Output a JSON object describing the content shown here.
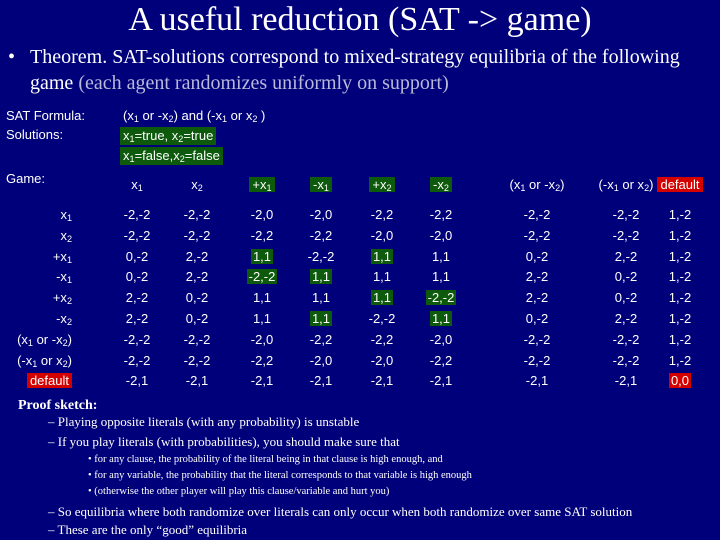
{
  "title": "A useful reduction (SAT -> game)",
  "theorem": {
    "bullet": "•",
    "text": "Theorem.  SAT-solutions correspond to mixed-strategy equilibria of the following game ",
    "note": "(each agent randomizes uniformly on support)"
  },
  "labels": {
    "sat_formula": "SAT Formula:",
    "solutions": "Solutions:",
    "game": "Game:"
  },
  "formula": {
    "prefix": "(x",
    "sub1": "1",
    "mid1": " or -x",
    "sub2": "2",
    "mid2": ") and (-x",
    "sub3": "1",
    "mid3": " or x",
    "sub4": "2",
    "suffix": " )"
  },
  "solutions": [
    {
      "a": "x",
      "as": "1",
      "b": "=true, x",
      "bs": "2",
      "c": "=true"
    },
    {
      "a": "x",
      "as": "1",
      "b": "=false,x",
      "bs": "2",
      "c": "=false"
    }
  ],
  "columns": [
    {
      "label": "x",
      "sub": "1",
      "style": ""
    },
    {
      "label": "x",
      "sub": "2",
      "style": ""
    },
    {
      "label": "+x",
      "sub": "1",
      "style": "hl"
    },
    {
      "label": "-x",
      "sub": "1",
      "style": "hl"
    },
    {
      "label": "+x",
      "sub": "2",
      "style": "hl"
    },
    {
      "label": "-x",
      "sub": "2",
      "style": "hl"
    },
    {
      "label": "(x",
      "sub": "1",
      "after": " or -x",
      "sub2": "2",
      "tail": ")",
      "style": ""
    },
    {
      "label": "(-x",
      "sub": "1",
      "after": " or x",
      "sub2": "2",
      "tail": ")",
      "style": ""
    },
    {
      "label": "default",
      "sub": "",
      "style": "red"
    }
  ],
  "rows": [
    {
      "label": "x",
      "sub": "1",
      "style": ""
    },
    {
      "label": "x",
      "sub": "2",
      "style": ""
    },
    {
      "label": "+x",
      "sub": "1",
      "style": "hl"
    },
    {
      "label": "-x",
      "sub": "1",
      "style": "hl"
    },
    {
      "label": "+x",
      "sub": "2",
      "style": "hl"
    },
    {
      "label": "-x",
      "sub": "2",
      "style": "hl"
    },
    {
      "label": "(x",
      "sub": "1",
      "after": " or -x",
      "sub2": "2",
      "tail": ")",
      "style": ""
    },
    {
      "label": "(-x",
      "sub": "1",
      "after": " or x",
      "sub2": "2",
      "tail": ")",
      "style": ""
    },
    {
      "label": "default",
      "sub": "",
      "style": "red"
    }
  ],
  "matrix": [
    [
      "-2,-2",
      "-2,-2",
      "-2,0",
      "-2,0",
      "-2,2",
      "-2,2",
      "-2,-2",
      "-2,-2",
      "1,-2"
    ],
    [
      "-2,-2",
      "-2,-2",
      "-2,2",
      "-2,2",
      "-2,0",
      "-2,0",
      "-2,-2",
      "-2,-2",
      "1,-2"
    ],
    [
      "0,-2",
      "2,-2",
      "1,1",
      "-2,-2",
      "1,1",
      "1,1",
      "0,-2",
      "2,-2",
      "1,-2"
    ],
    [
      "0,-2",
      "2,-2",
      "-2,-2",
      "1,1",
      "1,1",
      "1,1",
      "2,-2",
      "0,-2",
      "1,-2"
    ],
    [
      "2,-2",
      "0,-2",
      "1,1",
      "1,1",
      "1,1",
      "-2,-2",
      "2,-2",
      "0,-2",
      "1,-2"
    ],
    [
      "2,-2",
      "0,-2",
      "1,1",
      "1,1",
      "-2,-2",
      "1,1",
      "0,-2",
      "2,-2",
      "1,-2"
    ],
    [
      "-2,-2",
      "-2,-2",
      "-2,0",
      "-2,2",
      "-2,2",
      "-2,0",
      "-2,-2",
      "-2,-2",
      "1,-2"
    ],
    [
      "-2,-2",
      "-2,-2",
      "-2,2",
      "-2,0",
      "-2,0",
      "-2,2",
      "-2,-2",
      "-2,-2",
      "1,-2"
    ],
    [
      "-2,1",
      "-2,1",
      "-2,1",
      "-2,1",
      "-2,1",
      "-2,1",
      "-2,1",
      "-2,1",
      "0,0"
    ]
  ],
  "highlight": {
    "green_cells": [
      [
        2,
        2
      ],
      [
        3,
        3
      ],
      [
        4,
        4
      ],
      [
        5,
        5
      ],
      [
        3,
        2
      ],
      [
        5,
        3
      ],
      [
        2,
        4
      ],
      [
        4,
        5
      ]
    ],
    "red_cells": [
      [
        8,
        8
      ]
    ],
    "green_color": "#0d5a0d",
    "red_color": "#d40000"
  },
  "proof": {
    "title": "Proof sketch:",
    "lines": [
      "– Playing opposite literals (with any probability) is unstable",
      "– If you play literals (with probabilities), you should make sure that"
    ],
    "sub_bullets": [
      "• for any clause, the probability of the literal being in that clause is high enough, and",
      "• for any variable, the probability that the literal corresponds to that variable is high enough",
      "• (otherwise the other player will play this clause/variable and hurt you)"
    ],
    "closing": [
      "– So equilibria where both randomize over literals can only occur when both randomize over same SAT solution",
      "– These are the only “good” equilibria"
    ]
  },
  "colors": {
    "background": "#00007a",
    "text": "#ffffff"
  }
}
